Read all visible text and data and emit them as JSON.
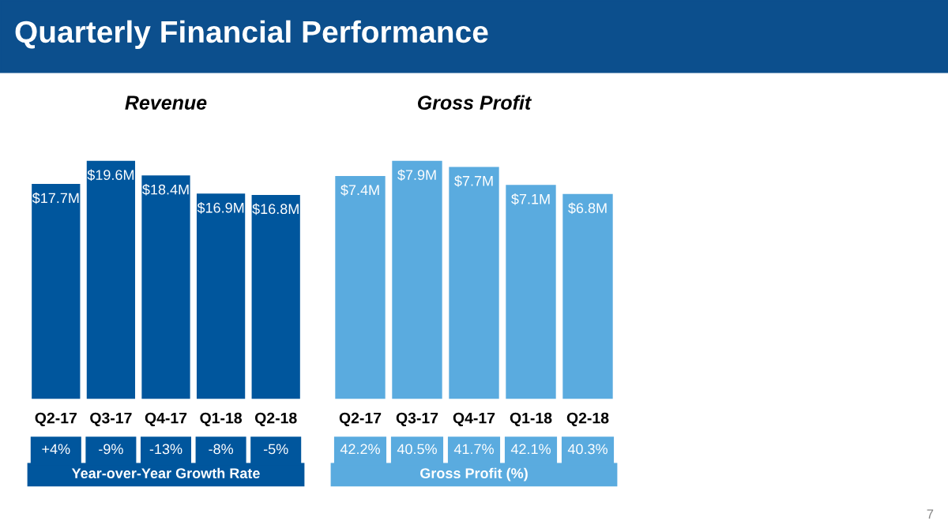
{
  "chart_data": [
    {
      "type": "other",
      "title": "Quarterly Financial Performance",
      "annotations": [
        "7"
      ]
    },
    {
      "type": "bar",
      "title": "Revenue",
      "categories": [
        "Q2-17",
        "Q3-17",
        "Q4-17",
        "Q1-18",
        "Q2-18"
      ],
      "values": [
        17.7,
        19.6,
        18.4,
        16.9,
        16.8
      ],
      "value_labels": [
        "$17.7M",
        "$19.6M",
        "$18.4M",
        "$16.9M",
        "$16.8M"
      ],
      "color": "#00569d",
      "annotations": [
        "+4%",
        "-9%",
        "-13%",
        "-8%",
        "-5%",
        "Year-over-Year Growth Rate"
      ]
    },
    {
      "type": "bar",
      "title": "Gross Profit",
      "categories": [
        "Q2-17",
        "Q3-17",
        "Q4-17",
        "Q1-18",
        "Q2-18"
      ],
      "values": [
        7.4,
        7.9,
        7.7,
        7.1,
        6.8
      ],
      "value_labels": [
        "$7.4M",
        "$7.9M",
        "$7.7M",
        "$7.1M",
        "$6.8M"
      ],
      "color": "#5aabdf",
      "annotations": [
        "42.2%",
        "40.5%",
        "41.7%",
        "42.1%",
        "40.3%",
        "Gross Profit (%)"
      ]
    }
  ]
}
